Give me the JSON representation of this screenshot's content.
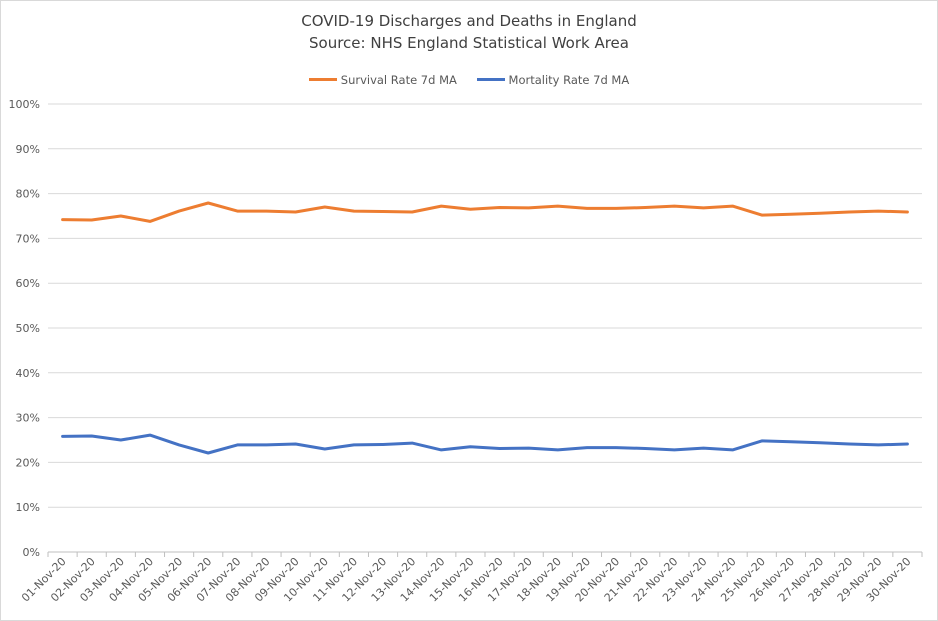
{
  "chart_data": {
    "type": "line",
    "title": "COVID-19 Discharges and Deaths in England",
    "subtitle": "Source: NHS England Statistical Work Area",
    "legend_position": "top",
    "grid": true,
    "ylim": [
      0,
      100
    ],
    "y_ticks": [
      "0%",
      "10%",
      "20%",
      "30%",
      "40%",
      "50%",
      "60%",
      "70%",
      "80%",
      "90%",
      "100%"
    ],
    "categories": [
      "01-Nov-20",
      "02-Nov-20",
      "03-Nov-20",
      "04-Nov-20",
      "05-Nov-20",
      "06-Nov-20",
      "07-Nov-20",
      "08-Nov-20",
      "09-Nov-20",
      "10-Nov-20",
      "11-Nov-20",
      "12-Nov-20",
      "13-Nov-20",
      "14-Nov-20",
      "15-Nov-20",
      "16-Nov-20",
      "17-Nov-20",
      "18-Nov-20",
      "19-Nov-20",
      "20-Nov-20",
      "21-Nov-20",
      "22-Nov-20",
      "23-Nov-20",
      "24-Nov-20",
      "25-Nov-20",
      "26-Nov-20",
      "27-Nov-20",
      "28-Nov-20",
      "29-Nov-20",
      "30-Nov-20"
    ],
    "series": [
      {
        "name": "Survival Rate 7d MA",
        "color": "#ED7D31",
        "values": [
          74.2,
          74.1,
          75.0,
          73.8,
          76.1,
          77.9,
          76.1,
          76.1,
          75.9,
          77.0,
          76.1,
          76.0,
          75.9,
          77.2,
          76.5,
          76.9,
          76.8,
          77.2,
          76.7,
          76.7,
          76.9,
          77.2,
          76.8,
          77.2,
          75.2,
          75.4,
          75.6,
          75.9,
          76.1,
          75.9
        ]
      },
      {
        "name": "Mortality Rate 7d MA",
        "color": "#4472C4",
        "values": [
          25.8,
          25.9,
          25.0,
          26.1,
          23.9,
          22.1,
          23.9,
          23.9,
          24.1,
          23.0,
          23.9,
          24.0,
          24.3,
          22.8,
          23.5,
          23.1,
          23.2,
          22.8,
          23.3,
          23.3,
          23.1,
          22.8,
          23.2,
          22.8,
          24.8,
          24.6,
          24.4,
          24.1,
          23.9,
          24.1
        ]
      }
    ]
  }
}
